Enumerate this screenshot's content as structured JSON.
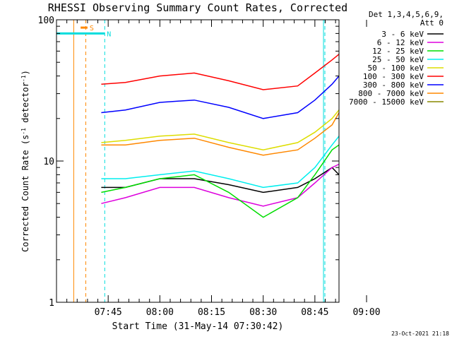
{
  "chart_data": {
    "type": "line",
    "title": "RHESSI Observing Summary Count Rates, Corrected",
    "xlabel": "Start Time (31-May-14 07:30:42)",
    "ylabel": "Corrected Count Rate (s⁻¹ detector⁻¹)",
    "y_scale": "log",
    "ylim": [
      1,
      100
    ],
    "y_ticks": [
      {
        "value": 1,
        "label": "1"
      },
      {
        "value": 10,
        "label": "10"
      },
      {
        "value": 100,
        "label": "100"
      }
    ],
    "x_unit": "minutes since 07:30",
    "xlim": [
      30,
      112
    ],
    "x_ticks": [
      {
        "value": 45,
        "label": "07:45"
      },
      {
        "value": 60,
        "label": "08:00"
      },
      {
        "value": 75,
        "label": "08:15"
      },
      {
        "value": 90,
        "label": "08:30"
      },
      {
        "value": 105,
        "label": "08:45"
      },
      {
        "value": 120,
        "label": "09:00"
      }
    ],
    "legend_header": [
      "Det 1,3,4,5,6,9,",
      "Att 0"
    ],
    "legend_position": "right",
    "x_grid": false,
    "y_grid": false,
    "series": [
      {
        "name": "3 - 6 keV",
        "color": "#000000",
        "x": [
          43,
          50,
          60,
          70,
          80,
          90,
          100,
          105,
          110,
          112
        ],
        "values": [
          6.5,
          6.5,
          7.5,
          7.5,
          6.8,
          6.0,
          6.5,
          7.5,
          9.0,
          8.0
        ]
      },
      {
        "name": "6 - 12 keV",
        "color": "#dd00dd",
        "x": [
          43,
          50,
          60,
          70,
          80,
          90,
          100,
          105,
          110,
          112
        ],
        "values": [
          5.0,
          5.5,
          6.5,
          6.5,
          5.5,
          4.8,
          5.5,
          7.0,
          9.0,
          9.5
        ]
      },
      {
        "name": "12 - 25 keV",
        "color": "#00dd00",
        "x": [
          43,
          50,
          60,
          70,
          80,
          90,
          100,
          105,
          110,
          112
        ],
        "values": [
          6.0,
          6.5,
          7.5,
          8.0,
          6.0,
          4.0,
          5.5,
          8.0,
          12.0,
          13.0
        ]
      },
      {
        "name": "25 - 50 keV",
        "color": "#00eeee",
        "x": [
          43,
          50,
          60,
          70,
          80,
          90,
          100,
          105,
          110,
          112
        ],
        "values": [
          7.5,
          7.5,
          8.0,
          8.5,
          7.5,
          6.5,
          7.0,
          9.0,
          13.0,
          15.0
        ]
      },
      {
        "name": "50 - 100 keV",
        "color": "#dddd00",
        "x": [
          43,
          50,
          60,
          70,
          80,
          90,
          100,
          105,
          110,
          112
        ],
        "values": [
          13.5,
          14.0,
          15.0,
          15.5,
          13.5,
          12.0,
          13.5,
          16.0,
          20.0,
          23.0
        ]
      },
      {
        "name": "100 - 300 keV",
        "color": "#ff0000",
        "x": [
          43,
          50,
          60,
          70,
          80,
          90,
          100,
          105,
          110,
          112
        ],
        "values": [
          35,
          36,
          40,
          42,
          37,
          32,
          34,
          42,
          52,
          57
        ]
      },
      {
        "name": "300 - 800 keV",
        "color": "#0000ff",
        "x": [
          43,
          50,
          60,
          70,
          80,
          90,
          100,
          105,
          110,
          112
        ],
        "values": [
          22,
          23,
          26,
          27,
          24,
          20,
          22,
          27,
          35,
          40
        ]
      },
      {
        "name": "800 - 7000 keV",
        "color": "#ff8800",
        "x": [
          43,
          50,
          60,
          70,
          80,
          90,
          100,
          105,
          110,
          112
        ],
        "values": [
          13,
          13,
          14,
          14.5,
          12.5,
          11,
          12,
          14.5,
          18,
          22
        ]
      },
      {
        "name": "7000 - 15000 keV",
        "color": "#888800",
        "x": [],
        "values": []
      }
    ],
    "attenuator_bars": [
      {
        "label": "N",
        "color": "#00dddd",
        "x_start": 30,
        "x_end": 44,
        "value": 80
      },
      {
        "label": "",
        "color": "#00dddd",
        "x_start": 108,
        "x_end": 122,
        "value": 80
      },
      {
        "label": "S",
        "color": "#ff8800",
        "x_start": 37,
        "x_end": 39,
        "value": 88
      }
    ],
    "vertical_markers": [
      {
        "x": 35,
        "color": "#ff8800",
        "style": "solid"
      },
      {
        "x": 38.5,
        "color": "#ff8800",
        "style": "dashed"
      },
      {
        "x": 44,
        "color": "#00dddd",
        "style": "dashed"
      },
      {
        "x": 107.5,
        "color": "#00dddd",
        "style": "solid"
      },
      {
        "x": 122,
        "color": "#00dddd",
        "style": "dashed"
      }
    ]
  },
  "footer": {
    "date_stamp": "23-Oct-2021 21:18"
  }
}
